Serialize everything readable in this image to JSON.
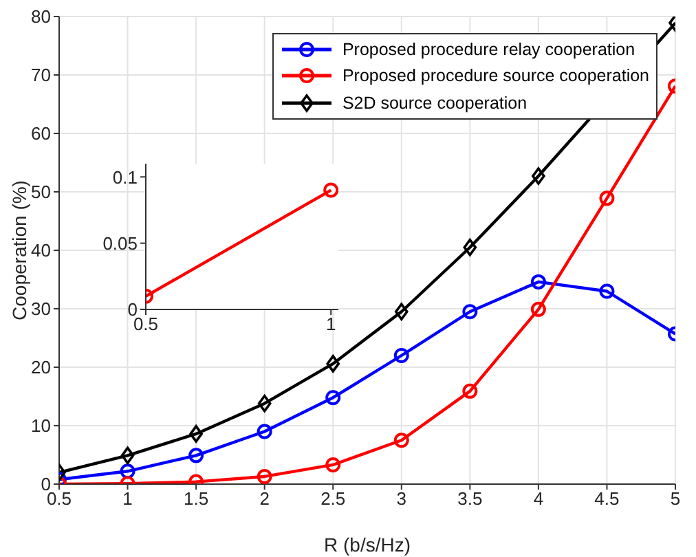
{
  "chart_data": [
    {
      "type": "line",
      "xlabel": "R (b/s/Hz)",
      "ylabel": "Cooperation (%)",
      "x": [
        0.5,
        1,
        1.5,
        2,
        2.5,
        3,
        3.5,
        4,
        4.5,
        5
      ],
      "xlim": [
        0.5,
        5
      ],
      "xticks": [
        0.5,
        1,
        1.5,
        2,
        2.5,
        3,
        3.5,
        4,
        4.5,
        5
      ],
      "ylim": [
        0,
        80
      ],
      "yticks": [
        0,
        10,
        20,
        30,
        40,
        50,
        60,
        70,
        80
      ],
      "grid": true,
      "legend": "top right",
      "line_style": "solid",
      "series": [
        {
          "name": "Proposed procedure relay cooperation",
          "color": "#0000ff",
          "marker": "circle",
          "values": [
            0.8,
            2.2,
            4.9,
            9.0,
            14.8,
            22.0,
            29.5,
            34.6,
            33.0,
            25.7
          ]
        },
        {
          "name": "Proposed procedure source cooperation",
          "color": "#ff0000",
          "marker": "circle",
          "values": [
            0.01,
            0.09,
            0.4,
            1.3,
            3.3,
            7.5,
            15.9,
            29.9,
            48.9,
            68.1
          ]
        },
        {
          "name": "S2D source cooperation",
          "color": "#000000",
          "marker": "diamond",
          "values": [
            2.0,
            4.9,
            8.6,
            13.8,
            20.6,
            29.5,
            40.5,
            52.7,
            null,
            78.9
          ]
        }
      ]
    },
    {
      "type": "line",
      "x": [
        0.5,
        1
      ],
      "xlim": [
        0.5,
        1.02
      ],
      "xticks": [
        0.5,
        1
      ],
      "ylim": [
        0,
        0.11
      ],
      "yticks": [
        0,
        0.05,
        0.1
      ],
      "line_style": "solid",
      "series": [
        {
          "color": "#ff0000",
          "marker": "circle",
          "values": [
            0.01,
            0.09
          ]
        }
      ]
    }
  ]
}
